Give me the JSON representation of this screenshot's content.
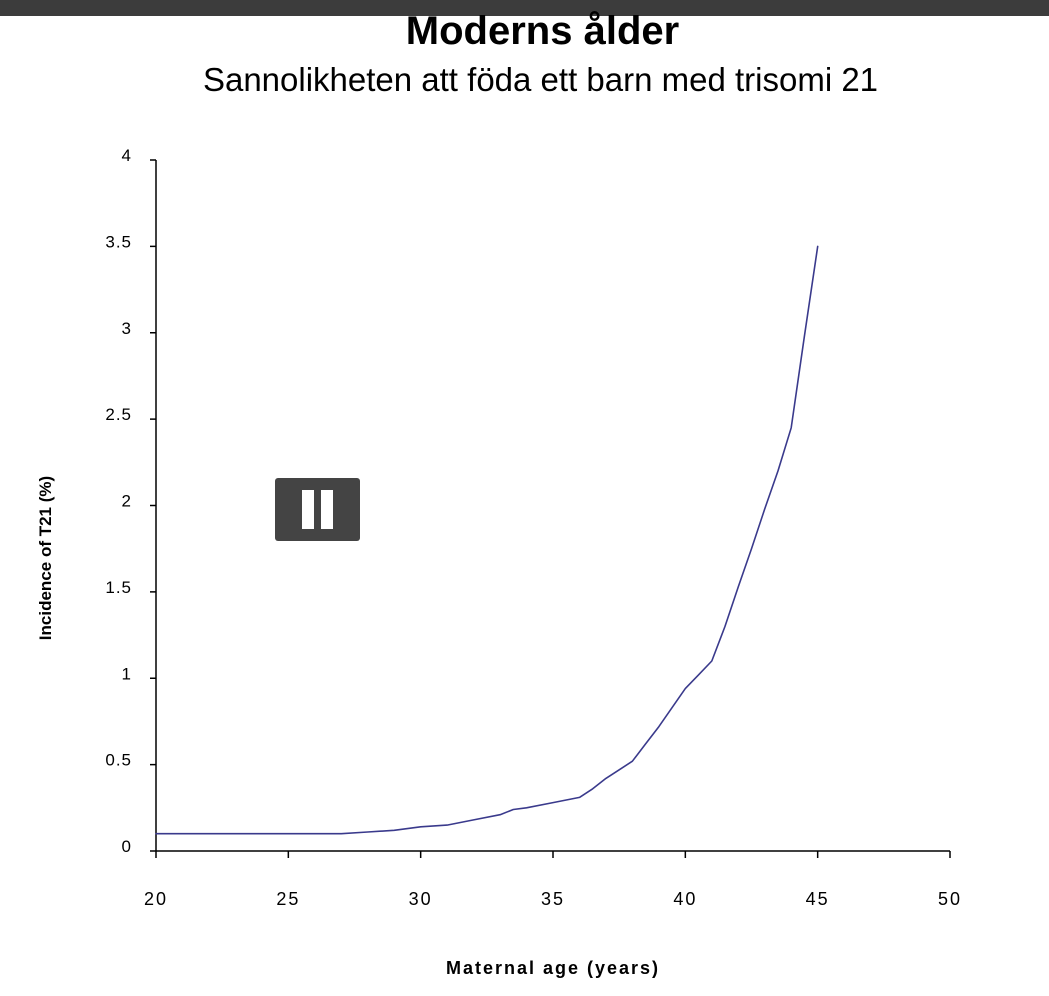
{
  "title": "Moderns ålder",
  "subtitle": "Sannolikheten att föda ett barn med trisomi 21",
  "controls": {
    "pause_icon": "pause-icon"
  },
  "colors": {
    "top_bar": "#3c3c3c",
    "line": "#3a3a8c",
    "axis": "#000000",
    "pause_bg": "#444444"
  },
  "chart_data": {
    "type": "line",
    "title": "",
    "xlabel": "Maternal age (years)",
    "ylabel": "Incidence of T21 (%)",
    "xlim": [
      20,
      50
    ],
    "ylim": [
      0,
      4
    ],
    "xticks": [
      "20",
      "25",
      "30",
      "35",
      "40",
      "45",
      "50"
    ],
    "yticks": [
      "0",
      "0.5",
      "1",
      "1.5",
      "2",
      "2.5",
      "3",
      "3.5",
      "4"
    ],
    "grid": false,
    "series": [
      {
        "x": [
          20,
          21,
          22,
          23,
          24,
          25,
          26,
          27,
          28,
          29,
          30,
          31,
          32,
          33,
          33.5,
          34,
          35,
          36,
          36.5,
          37,
          37.5,
          38,
          38.5,
          39,
          39.5,
          40,
          40.5,
          41,
          41.5,
          42,
          42.5,
          43,
          43.5,
          44,
          44.5,
          45
        ],
        "y": [
          0.1,
          0.1,
          0.1,
          0.1,
          0.1,
          0.1,
          0.1,
          0.1,
          0.11,
          0.12,
          0.14,
          0.15,
          0.18,
          0.21,
          0.24,
          0.25,
          0.28,
          0.31,
          0.36,
          0.42,
          0.47,
          0.52,
          0.62,
          0.72,
          0.83,
          0.94,
          1.02,
          1.1,
          1.3,
          1.53,
          1.75,
          1.98,
          2.2,
          2.45,
          2.98,
          3.5
        ]
      }
    ]
  }
}
